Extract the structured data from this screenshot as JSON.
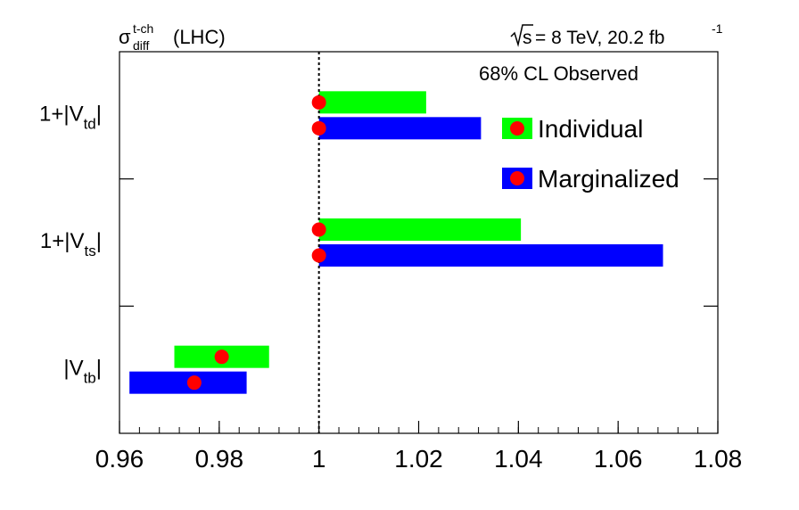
{
  "header": {
    "sigma_symbol": "σ",
    "sigma_sup": "t-ch",
    "sigma_sub": "diff",
    "sigma_suffix": "(LHC)",
    "energy_root": "s",
    "energy_text": "= 8 TeV, 20.2 fb",
    "lumi_exp": "-1"
  },
  "chart_data": {
    "type": "interval",
    "annotation": "68% CL Observed",
    "xlim": [
      0.96,
      1.08
    ],
    "xticks": [
      "0.96",
      "0.98",
      "1",
      "1.02",
      "1.04",
      "1.06",
      "1.08"
    ],
    "reference_line": 1.0,
    "legend": {
      "placement": "top-right",
      "entries": [
        {
          "name": "Individual",
          "color": "#00ff00"
        },
        {
          "name": "Marginalized",
          "color": "#0000ff"
        }
      ]
    },
    "categories": [
      {
        "prefix": "1+|V",
        "sub": "td",
        "suffix": "|"
      },
      {
        "prefix": "1+|V",
        "sub": "ts",
        "suffix": "|"
      },
      {
        "prefix": "|V",
        "sub": "tb",
        "suffix": "|"
      }
    ],
    "series": [
      {
        "name": "Individual",
        "color": "#00ff00",
        "points": [
          {
            "category": 0,
            "low": 1.0,
            "high": 1.0215,
            "value": 1.0
          },
          {
            "category": 1,
            "low": 1.0,
            "high": 1.0405,
            "value": 1.0
          },
          {
            "category": 2,
            "low": 0.971,
            "high": 0.99,
            "value": 0.9805
          }
        ]
      },
      {
        "name": "Marginalized",
        "color": "#0000ff",
        "points": [
          {
            "category": 0,
            "low": 1.0,
            "high": 1.0325,
            "value": 1.0
          },
          {
            "category": 1,
            "low": 1.0,
            "high": 1.069,
            "value": 1.0
          },
          {
            "category": 2,
            "low": 0.962,
            "high": 0.9855,
            "value": 0.975
          }
        ]
      }
    ],
    "marker_color": "#ff0000"
  }
}
